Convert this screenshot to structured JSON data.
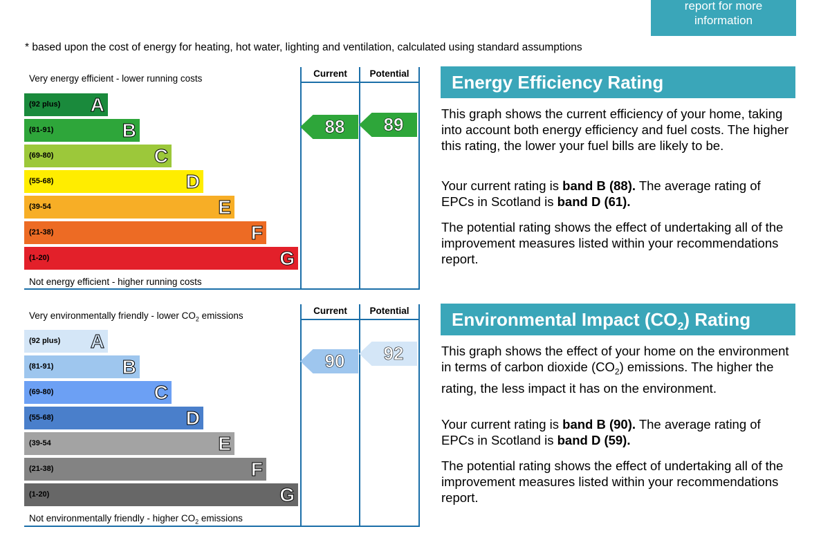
{
  "more_info": {
    "line1": "report for more",
    "line2": "information"
  },
  "footnote": "* based upon the cost of energy for heating, hot water, lighting and ventilation, calculated using standard assumptions",
  "columns": {
    "current": "Current",
    "potential": "Potential"
  },
  "energy": {
    "top_label": "Very energy efficient - lower running costs",
    "bottom_label": "Not energy efficient - higher running costs",
    "bands": [
      {
        "range": "(92 plus)",
        "letter": "A",
        "color": "#1a8a3c"
      },
      {
        "range": "(81-91)",
        "letter": "B",
        "color": "#2ea63a"
      },
      {
        "range": "(69-80)",
        "letter": "C",
        "color": "#9cc83a"
      },
      {
        "range": "(55-68)",
        "letter": "D",
        "color": "#ffed00"
      },
      {
        "range": "(39-54",
        "letter": "E",
        "color": "#f7ae26"
      },
      {
        "range": "(21-38)",
        "letter": "F",
        "color": "#ed6b24"
      },
      {
        "range": "(1-20)",
        "letter": "G",
        "color": "#e3202a"
      }
    ],
    "current": "88",
    "potential": "89",
    "current_color": "#2ea63a",
    "potential_color": "#2ea63a",
    "heading": "Energy Efficiency Rating",
    "para1": "This graph shows the current efficiency of your home, taking into account both energy efficiency and fuel costs. The higher this rating, the lower your fuel bills are likely to be.",
    "para2_pre": "Your current rating is ",
    "para2_b1": "band B (88).",
    "para2_mid": " The average rating of EPCs in Scotland is ",
    "para2_b2": "band D (61).",
    "para3": "The potential rating shows the effect of undertaking all of the improvement measures listed within your recommendations report."
  },
  "environment": {
    "top_label": "Very environmentally friendly - lower CO",
    "top_label_sub": "2",
    "top_label_end": " emissions",
    "bottom_label": "Not environmentally friendly - higher CO",
    "bottom_label_sub": "2",
    "bottom_label_end": " emissions",
    "bands": [
      {
        "range": "(92 plus)",
        "letter": "A",
        "color": "#d4e6f7"
      },
      {
        "range": "(81-91)",
        "letter": "B",
        "color": "#9ec6ee"
      },
      {
        "range": "(69-80)",
        "letter": "C",
        "color": "#6ca0f4"
      },
      {
        "range": "(55-68)",
        "letter": "D",
        "color": "#4a7fcb"
      },
      {
        "range": "(39-54",
        "letter": "E",
        "color": "#a3a3a3"
      },
      {
        "range": "(21-38)",
        "letter": "F",
        "color": "#838383"
      },
      {
        "range": "(1-20)",
        "letter": "G",
        "color": "#676767"
      }
    ],
    "current": "90",
    "potential": "92",
    "current_color": "#9ec6ee",
    "potential_color": "#d4e6f7",
    "heading_pre": "Environmental Impact (CO",
    "heading_sub": "2",
    "heading_post": ") Rating",
    "para1_pre": "This graph shows the effect of your home on the environment in terms of carbon dioxide (CO",
    "para1_sub": "2",
    "para1_post": ") emissions. The higher the rating, the less impact it has on the environment.",
    "para2_pre": "Your current rating is ",
    "para2_b1": "band B (90).",
    "para2_mid": " The average rating of EPCs in Scotland is ",
    "para2_b2": "band D (59).",
    "para3": "The potential rating shows the effect of undertaking all of the improvement measures listed within your recommendations report."
  }
}
